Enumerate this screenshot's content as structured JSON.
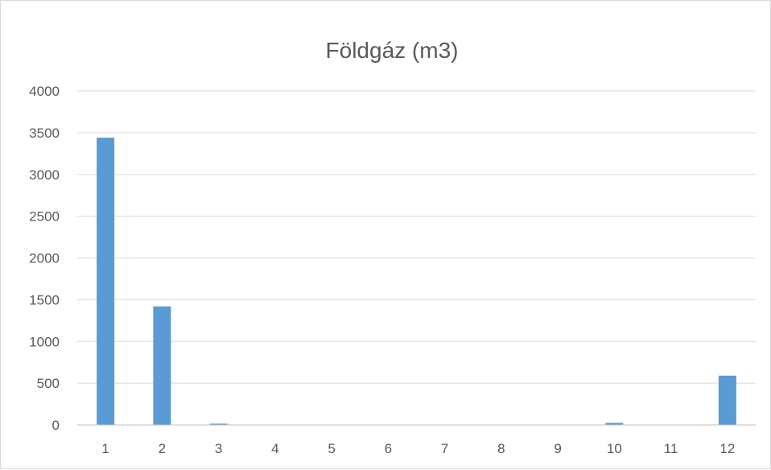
{
  "chart_data": {
    "type": "bar",
    "title": "Földgáz (m3)",
    "xlabel": "",
    "ylabel": "",
    "categories": [
      "1",
      "2",
      "3",
      "4",
      "5",
      "6",
      "7",
      "8",
      "9",
      "10",
      "11",
      "12"
    ],
    "values": [
      3440,
      1420,
      15,
      0,
      0,
      0,
      0,
      0,
      0,
      25,
      0,
      590
    ],
    "ylim": [
      0,
      4000
    ],
    "yticks": [
      "0",
      "500",
      "1000",
      "1500",
      "2000",
      "2500",
      "3000",
      "3500",
      "4000"
    ],
    "grid": true,
    "legend": "none",
    "colors": {
      "bar": "#5b9bd5",
      "grid": "#d9d9d9",
      "axis": "#bfbfbf",
      "text": "#595959"
    }
  }
}
